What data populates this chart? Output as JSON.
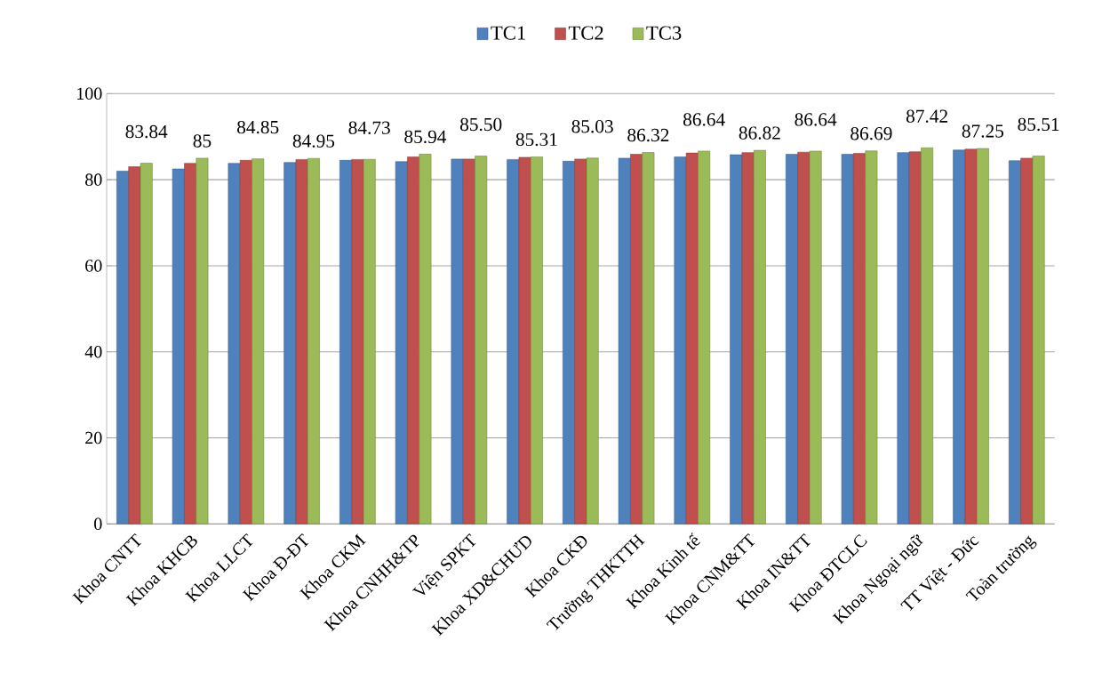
{
  "chart_data": {
    "type": "bar",
    "categories": [
      "Khoa CNTT",
      "Khoa KHCB",
      "Khoa LLCT",
      "Khoa Đ-ĐT",
      "Khoa CKM",
      "Khoa CNHH&TP",
      "Viện SPKT",
      "Khoa XD&CHƯD",
      "Khoa CKĐ",
      "Trường THKTTH",
      "Khoa Kinh tế",
      "Khoa CNM&TT",
      "Khoa IN&TT",
      "Khoa ĐTCLC",
      "Khoa Ngoại ngữ",
      "TT Việt - Đức",
      "Toàn trường"
    ],
    "series": [
      {
        "name": "TC1",
        "color": "#4f81bd",
        "values": [
          82.0,
          82.5,
          83.8,
          84.0,
          84.5,
          84.2,
          84.8,
          84.7,
          84.3,
          85.0,
          85.3,
          85.8,
          85.9,
          85.9,
          86.3,
          86.9,
          84.4
        ]
      },
      {
        "name": "TC2",
        "color": "#c0504d",
        "values": [
          83.0,
          83.8,
          84.5,
          84.7,
          84.7,
          85.3,
          84.8,
          85.2,
          84.8,
          85.9,
          86.2,
          86.3,
          86.4,
          86.1,
          86.5,
          87.1,
          85.0
        ]
      },
      {
        "name": "TC3",
        "color": "#9bbb59",
        "values": [
          83.84,
          85,
          84.85,
          84.95,
          84.73,
          85.94,
          85.5,
          85.31,
          85.03,
          86.32,
          86.64,
          86.82,
          86.64,
          86.69,
          87.42,
          87.25,
          85.51
        ],
        "value_labels": [
          "83.84",
          "85",
          "84.85",
          "84.95",
          "84.73",
          "85.94",
          "85.50",
          "85.31",
          "85.03",
          "86.32",
          "86.64",
          "86.82",
          "86.64",
          "86.69",
          "87.42",
          "87.25",
          "85.51"
        ]
      }
    ],
    "ylim": [
      0,
      100
    ],
    "yticks": [
      0,
      20,
      40,
      60,
      80,
      100
    ],
    "grid": "y",
    "legend": "top"
  }
}
